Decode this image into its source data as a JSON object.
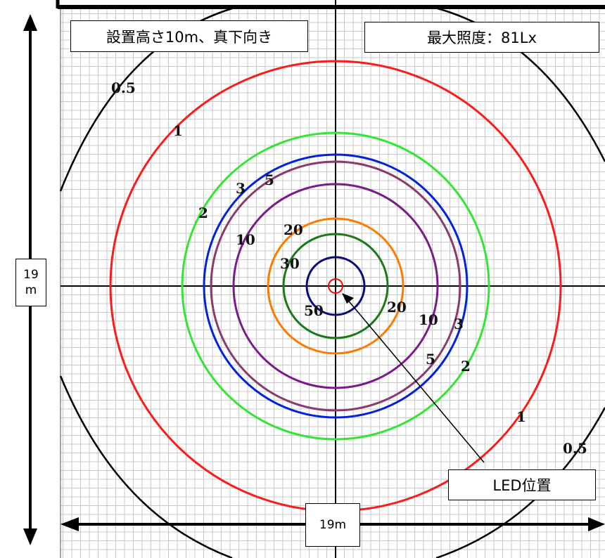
{
  "labels": {
    "install_info": "設置高さ10m、真下向き",
    "max_illuminance": "最大照度：81Lx",
    "height_dim": "19",
    "height_unit": "m",
    "width_dim": "19m",
    "led_position": "LED位置"
  },
  "contours": [
    {
      "value": "0.5",
      "color": "#000000"
    },
    {
      "value": "1",
      "color": "#ff1a1a"
    },
    {
      "value": "2",
      "color": "#33e633"
    },
    {
      "value": "3",
      "color": "#0022dd"
    },
    {
      "value": "5",
      "color": "#8b3a6b"
    },
    {
      "value": "10",
      "color": "#7a1a8c"
    },
    {
      "value": "20",
      "color": "#ff7a00"
    },
    {
      "value": "30",
      "color": "#1a7a1a"
    },
    {
      "value": "50",
      "color": "#0b0b7a"
    },
    {
      "value": "81",
      "color": "#ff0000"
    }
  ],
  "contour_labels": [
    {
      "text": "0.5"
    },
    {
      "text": "0.5"
    },
    {
      "text": "1"
    },
    {
      "text": "1"
    },
    {
      "text": "2"
    },
    {
      "text": "2"
    },
    {
      "text": "3"
    },
    {
      "text": "3"
    },
    {
      "text": "5"
    },
    {
      "text": "5"
    },
    {
      "text": "10"
    },
    {
      "text": "10"
    },
    {
      "text": "20"
    },
    {
      "text": "20"
    },
    {
      "text": "30"
    },
    {
      "text": "50"
    }
  ],
  "colors": {
    "grid": "#c8c8c8",
    "axis": "#000000",
    "background": "#ffffff"
  }
}
